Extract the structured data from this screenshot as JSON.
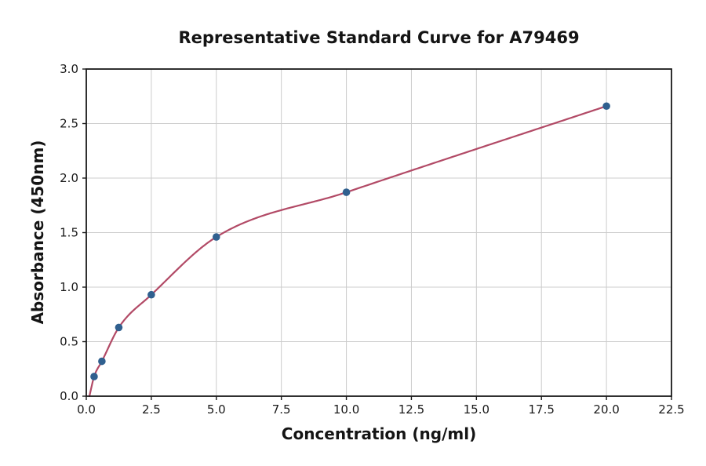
{
  "chart_data": {
    "type": "scatter",
    "title": "Representative Standard Curve for A79469",
    "xlabel": "Concentration (ng/ml)",
    "ylabel": "Absorbance (450nm)",
    "xlim": [
      0,
      22.5
    ],
    "ylim": [
      0,
      3.0
    ],
    "x_ticks": [
      0.0,
      2.5,
      5.0,
      7.5,
      10.0,
      12.5,
      15.0,
      17.5,
      20.0,
      22.5
    ],
    "y_ticks": [
      0.0,
      0.5,
      1.0,
      1.5,
      2.0,
      2.5,
      3.0
    ],
    "grid": true,
    "legend": "none",
    "points": [
      [
        0.3,
        0.18
      ],
      [
        0.6,
        0.32
      ],
      [
        1.25,
        0.63
      ],
      [
        2.5,
        0.93
      ],
      [
        5.0,
        1.46
      ],
      [
        10.0,
        1.87
      ],
      [
        20.0,
        2.66
      ]
    ],
    "fit_curve": {
      "type": "saturating-fit-through-points",
      "start": [
        0.12,
        0.0
      ],
      "end": [
        20.0,
        2.66
      ]
    },
    "colors": {
      "point": "#30608f",
      "curve": "#b24a66",
      "grid": "#cccccc",
      "axis": "#1a1a1a",
      "tick_label": "#1a1a1a"
    }
  }
}
